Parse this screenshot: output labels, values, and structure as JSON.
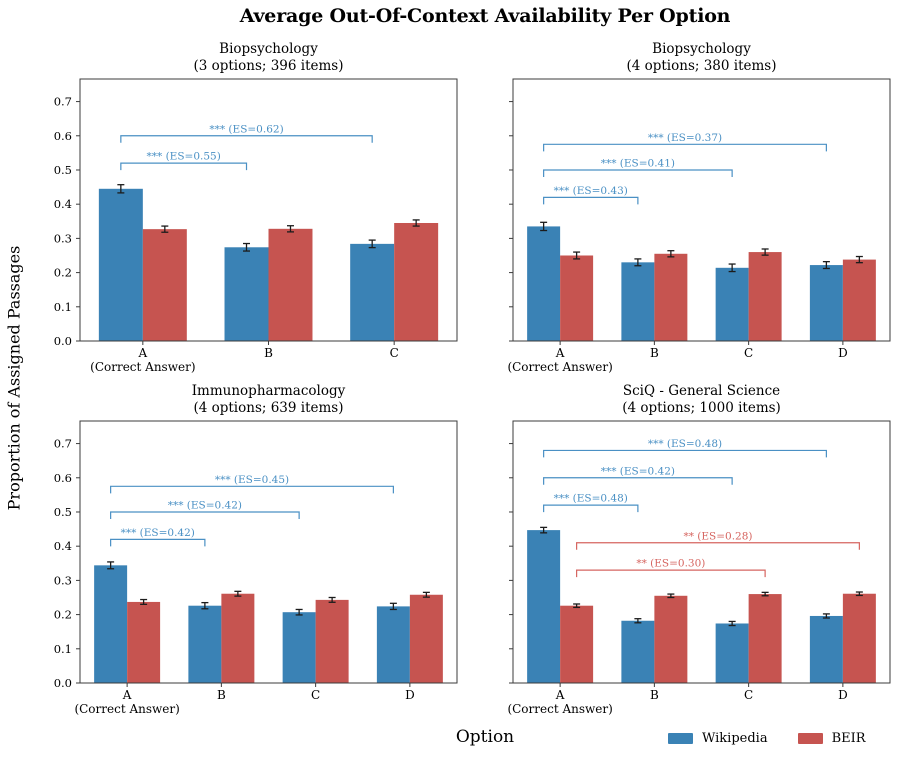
{
  "figure": {
    "title": "Average Out-Of-Context Availability Per Option",
    "ylabel": "Proportion of Assigned Passages",
    "xlabel": "Option",
    "colors": {
      "wikipedia": "#3a82b5",
      "beir": "#c65450",
      "bracket_wikipedia": "#4a90c4",
      "bracket_beir": "#d66560",
      "spine": "#3b3b3b",
      "errorbar": "#1c1c1c"
    }
  },
  "legend": {
    "position": "lower right",
    "items": [
      {
        "label": "Wikipedia",
        "color_key": "wikipedia"
      },
      {
        "label": "BEIR",
        "color_key": "beir"
      }
    ]
  },
  "chart_data": [
    {
      "type": "bar",
      "title": "Biopsychology",
      "subtitle": "(3 options; 396 items)",
      "categories": [
        "A",
        "B",
        "C"
      ],
      "correct_answer_note": "(Correct Answer)",
      "ylim": [
        0,
        0.766
      ],
      "yticks": [
        0.0,
        0.1,
        0.2,
        0.3,
        0.4,
        0.5,
        0.6,
        0.7
      ],
      "show_ytick_labels": true,
      "series": [
        {
          "name": "Wikipedia",
          "color_key": "wikipedia",
          "values": [
            0.445,
            0.274,
            0.284
          ],
          "errors": [
            0.012,
            0.011,
            0.011
          ]
        },
        {
          "name": "BEIR",
          "color_key": "beir",
          "values": [
            0.327,
            0.328,
            0.345
          ],
          "errors": [
            0.009,
            0.009,
            0.009
          ]
        }
      ],
      "annotations": [
        {
          "label": "*** (ES=0.55)",
          "series": "wikipedia",
          "from": 0,
          "to": 1,
          "y": 0.52
        },
        {
          "label": "*** (ES=0.62)",
          "series": "wikipedia",
          "from": 0,
          "to": 2,
          "y": 0.6
        }
      ]
    },
    {
      "type": "bar",
      "title": "Biopsychology",
      "subtitle": "(4 options; 380 items)",
      "categories": [
        "A",
        "B",
        "C",
        "D"
      ],
      "correct_answer_note": "(Correct Answer)",
      "ylim": [
        0,
        0.766
      ],
      "yticks": [
        0.0,
        0.1,
        0.2,
        0.3,
        0.4,
        0.5,
        0.6,
        0.7
      ],
      "show_ytick_labels": false,
      "series": [
        {
          "name": "Wikipedia",
          "color_key": "wikipedia",
          "values": [
            0.335,
            0.23,
            0.214,
            0.222
          ],
          "errors": [
            0.012,
            0.01,
            0.011,
            0.01
          ]
        },
        {
          "name": "BEIR",
          "color_key": "beir",
          "values": [
            0.25,
            0.255,
            0.26,
            0.238
          ],
          "errors": [
            0.01,
            0.009,
            0.009,
            0.009
          ]
        }
      ],
      "annotations": [
        {
          "label": "*** (ES=0.43)",
          "series": "wikipedia",
          "from": 0,
          "to": 1,
          "y": 0.42
        },
        {
          "label": "*** (ES=0.41)",
          "series": "wikipedia",
          "from": 0,
          "to": 2,
          "y": 0.5
        },
        {
          "label": "*** (ES=0.37)",
          "series": "wikipedia",
          "from": 0,
          "to": 3,
          "y": 0.575
        }
      ]
    },
    {
      "type": "bar",
      "title": "Immunopharmacology",
      "subtitle": "(4 options; 639 items)",
      "categories": [
        "A",
        "B",
        "C",
        "D"
      ],
      "correct_answer_note": "(Correct Answer)",
      "ylim": [
        0,
        0.766
      ],
      "yticks": [
        0.0,
        0.1,
        0.2,
        0.3,
        0.4,
        0.5,
        0.6,
        0.7
      ],
      "show_ytick_labels": true,
      "series": [
        {
          "name": "Wikipedia",
          "color_key": "wikipedia",
          "values": [
            0.344,
            0.226,
            0.207,
            0.224
          ],
          "errors": [
            0.01,
            0.009,
            0.008,
            0.009
          ]
        },
        {
          "name": "BEIR",
          "color_key": "beir",
          "values": [
            0.237,
            0.261,
            0.243,
            0.258
          ],
          "errors": [
            0.007,
            0.007,
            0.007,
            0.007
          ]
        }
      ],
      "annotations": [
        {
          "label": "*** (ES=0.42)",
          "series": "wikipedia",
          "from": 0,
          "to": 1,
          "y": 0.42
        },
        {
          "label": "*** (ES=0.42)",
          "series": "wikipedia",
          "from": 0,
          "to": 2,
          "y": 0.5
        },
        {
          "label": "*** (ES=0.45)",
          "series": "wikipedia",
          "from": 0,
          "to": 3,
          "y": 0.575
        }
      ]
    },
    {
      "type": "bar",
      "title": "SciQ - General Science",
      "subtitle": "(4 options; 1000 items)",
      "categories": [
        "A",
        "B",
        "C",
        "D"
      ],
      "correct_answer_note": "(Correct Answer)",
      "ylim": [
        0,
        0.766
      ],
      "yticks": [
        0.0,
        0.1,
        0.2,
        0.3,
        0.4,
        0.5,
        0.6,
        0.7
      ],
      "show_ytick_labels": false,
      "series": [
        {
          "name": "Wikipedia",
          "color_key": "wikipedia",
          "values": [
            0.447,
            0.182,
            0.174,
            0.196
          ],
          "errors": [
            0.008,
            0.006,
            0.006,
            0.006
          ]
        },
        {
          "name": "BEIR",
          "color_key": "beir",
          "values": [
            0.226,
            0.255,
            0.26,
            0.261
          ],
          "errors": [
            0.005,
            0.005,
            0.005,
            0.005
          ]
        }
      ],
      "annotations": [
        {
          "label": "*** (ES=0.48)",
          "series": "wikipedia",
          "from": 0,
          "to": 1,
          "y": 0.52
        },
        {
          "label": "*** (ES=0.42)",
          "series": "wikipedia",
          "from": 0,
          "to": 2,
          "y": 0.6
        },
        {
          "label": "*** (ES=0.48)",
          "series": "wikipedia",
          "from": 0,
          "to": 3,
          "y": 0.68
        },
        {
          "label": "** (ES=0.30)",
          "series": "beir",
          "from": 0,
          "to": 2,
          "y": 0.33
        },
        {
          "label": "** (ES=0.28)",
          "series": "beir",
          "from": 0,
          "to": 3,
          "y": 0.41
        }
      ]
    }
  ]
}
